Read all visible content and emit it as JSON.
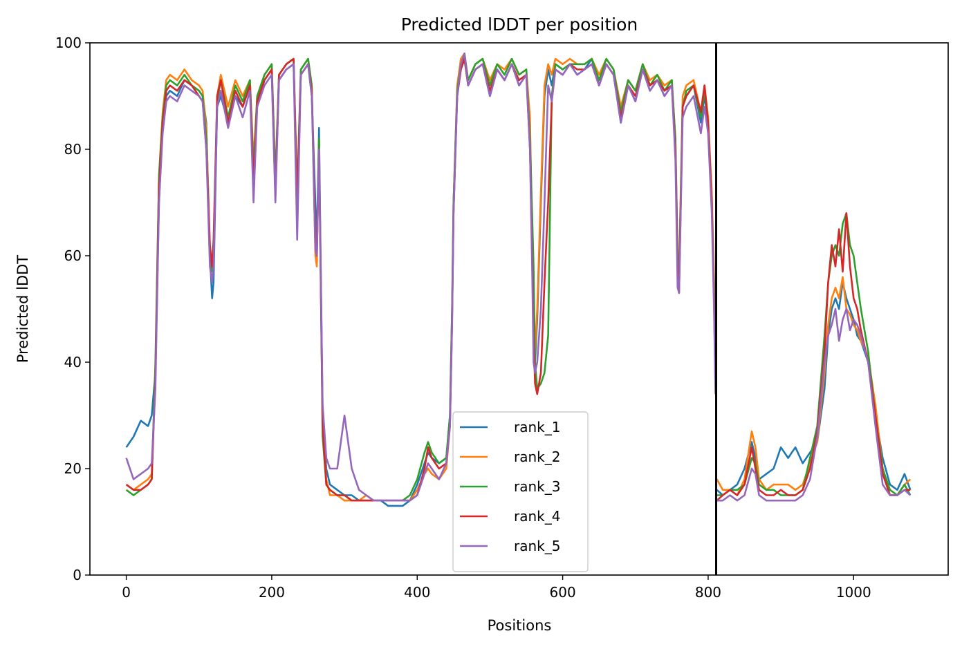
{
  "chart_data": {
    "type": "line",
    "title": "Predicted lDDT per position",
    "xlabel": "Positions",
    "ylabel": "Predicted lDDT",
    "xlim": [
      -50,
      1130
    ],
    "ylim": [
      0,
      100
    ],
    "xticks": [
      0,
      200,
      400,
      600,
      800,
      1000
    ],
    "yticks": [
      0,
      20,
      40,
      60,
      80,
      100
    ],
    "grid": false,
    "legend_position": "bottom-center",
    "vertical_line": {
      "x": 811,
      "color": "#000000"
    },
    "x": [
      0,
      10,
      20,
      30,
      35,
      40,
      45,
      50,
      55,
      60,
      70,
      80,
      90,
      100,
      105,
      110,
      115,
      118,
      120,
      125,
      130,
      140,
      150,
      160,
      170,
      175,
      180,
      190,
      200,
      205,
      210,
      220,
      230,
      235,
      240,
      250,
      255,
      260,
      262,
      265,
      270,
      275,
      280,
      290,
      300,
      310,
      320,
      330,
      340,
      350,
      360,
      370,
      380,
      390,
      400,
      410,
      415,
      420,
      430,
      440,
      445,
      448,
      450,
      455,
      460,
      465,
      470,
      480,
      490,
      500,
      510,
      520,
      530,
      540,
      550,
      555,
      558,
      560,
      562,
      565,
      570,
      575,
      580,
      585,
      590,
      600,
      610,
      620,
      630,
      640,
      650,
      660,
      670,
      680,
      690,
      700,
      710,
      720,
      730,
      740,
      750,
      755,
      758,
      760,
      765,
      770,
      780,
      790,
      795,
      800,
      805,
      808,
      810
    ],
    "x2": [
      812,
      820,
      830,
      840,
      850,
      860,
      865,
      870,
      880,
      890,
      900,
      910,
      920,
      930,
      940,
      950,
      960,
      965,
      970,
      975,
      980,
      985,
      990,
      995,
      1000,
      1005,
      1010,
      1020,
      1030,
      1040,
      1050,
      1060,
      1070,
      1078
    ],
    "series": [
      {
        "name": "rank_1",
        "color": "#1f77b4",
        "values": [
          24,
          26,
          29,
          28,
          30,
          38,
          70,
          85,
          90,
          91,
          90,
          93,
          92,
          91,
          90,
          85,
          60,
          52,
          55,
          88,
          90,
          85,
          90,
          88,
          92,
          75,
          88,
          93,
          95,
          72,
          93,
          95,
          96,
          70,
          94,
          96,
          90,
          70,
          62,
          84,
          30,
          20,
          17,
          16,
          15,
          15,
          14,
          14,
          14,
          14,
          13,
          13,
          13,
          14,
          17,
          21,
          23,
          22,
          21,
          22,
          30,
          50,
          70,
          90,
          95,
          97,
          92,
          95,
          96,
          90,
          95,
          93,
          96,
          92,
          94,
          85,
          62,
          48,
          40,
          48,
          70,
          90,
          95,
          92,
          96,
          95,
          96,
          94,
          95,
          97,
          92,
          96,
          94,
          85,
          92,
          89,
          95,
          91,
          93,
          90,
          92,
          80,
          58,
          55,
          88,
          90,
          92,
          85,
          90,
          85,
          70,
          55,
          45
        ],
        "values2": [
          16,
          15,
          16,
          17,
          20,
          25,
          22,
          18,
          19,
          20,
          24,
          22,
          24,
          21,
          23,
          25,
          35,
          45,
          50,
          52,
          50,
          55,
          52,
          50,
          48,
          45,
          44,
          40,
          30,
          22,
          17,
          16,
          19,
          16
        ]
      },
      {
        "name": "rank_2",
        "color": "#ff7f0e",
        "values": [
          17,
          16,
          17,
          18,
          19,
          38,
          75,
          87,
          93,
          94,
          93,
          95,
          93,
          92,
          91,
          84,
          62,
          58,
          60,
          90,
          94,
          88,
          93,
          90,
          93,
          78,
          90,
          94,
          96,
          75,
          94,
          96,
          97,
          72,
          95,
          97,
          92,
          60,
          58,
          82,
          28,
          18,
          15,
          15,
          14,
          14,
          14,
          15,
          14,
          14,
          14,
          14,
          14,
          14,
          16,
          19,
          20,
          19,
          18,
          20,
          28,
          48,
          70,
          92,
          97,
          98,
          93,
          96,
          97,
          93,
          96,
          95,
          97,
          94,
          95,
          86,
          64,
          50,
          42,
          50,
          72,
          92,
          96,
          94,
          97,
          96,
          97,
          96,
          96,
          97,
          94,
          97,
          95,
          88,
          93,
          91,
          96,
          93,
          94,
          92,
          93,
          82,
          60,
          57,
          90,
          92,
          93,
          87,
          92,
          86,
          72,
          56,
          42
        ],
        "values2": [
          18,
          16,
          16,
          15,
          18,
          27,
          24,
          18,
          16,
          17,
          17,
          17,
          16,
          17,
          21,
          25,
          38,
          47,
          52,
          54,
          52,
          56,
          50,
          49,
          47,
          46,
          44,
          41,
          32,
          20,
          15,
          15,
          17,
          18
        ]
      },
      {
        "name": "rank_3",
        "color": "#2ca02c",
        "values": [
          16,
          15,
          16,
          17,
          18,
          40,
          75,
          86,
          92,
          93,
          92,
          94,
          92,
          91,
          90,
          82,
          60,
          57,
          60,
          89,
          93,
          86,
          92,
          89,
          93,
          76,
          90,
          94,
          96,
          74,
          94,
          96,
          97,
          71,
          95,
          97,
          92,
          62,
          60,
          82,
          26,
          17,
          16,
          15,
          15,
          14,
          14,
          14,
          14,
          14,
          14,
          14,
          14,
          15,
          18,
          23,
          25,
          23,
          21,
          22,
          30,
          50,
          70,
          91,
          96,
          98,
          93,
          96,
          97,
          92,
          96,
          94,
          97,
          94,
          95,
          82,
          68,
          58,
          40,
          35,
          36,
          38,
          45,
          90,
          96,
          95,
          96,
          96,
          96,
          97,
          93,
          97,
          95,
          87,
          93,
          91,
          96,
          92,
          94,
          91,
          93,
          82,
          60,
          56,
          88,
          91,
          92,
          86,
          91,
          85,
          70,
          54,
          40
        ],
        "values2": [
          15,
          15,
          16,
          16,
          17,
          22,
          21,
          17,
          16,
          16,
          15,
          15,
          15,
          16,
          22,
          28,
          45,
          55,
          60,
          62,
          60,
          66,
          68,
          62,
          60,
          55,
          50,
          42,
          30,
          20,
          16,
          15,
          17,
          15
        ]
      },
      {
        "name": "rank_4",
        "color": "#d62728",
        "values": [
          17,
          16,
          16,
          17,
          18,
          37,
          73,
          85,
          91,
          92,
          91,
          93,
          92,
          90,
          89,
          80,
          62,
          58,
          63,
          90,
          93,
          85,
          91,
          88,
          92,
          74,
          89,
          93,
          95,
          71,
          94,
          96,
          97,
          70,
          94,
          96,
          91,
          64,
          60,
          80,
          28,
          17,
          16,
          15,
          15,
          14,
          14,
          14,
          14,
          14,
          14,
          14,
          14,
          14,
          15,
          20,
          24,
          22,
          20,
          21,
          28,
          48,
          68,
          90,
          95,
          97,
          92,
          95,
          96,
          91,
          95,
          93,
          96,
          93,
          94,
          80,
          60,
          45,
          36,
          34,
          38,
          55,
          70,
          89,
          95,
          94,
          96,
          95,
          95,
          96,
          92,
          96,
          94,
          86,
          92,
          90,
          95,
          92,
          93,
          91,
          92,
          80,
          58,
          53,
          88,
          90,
          92,
          87,
          92,
          85,
          70,
          52,
          35
        ],
        "values2": [
          14,
          15,
          16,
          15,
          17,
          24,
          20,
          16,
          15,
          15,
          16,
          15,
          15,
          16,
          20,
          27,
          42,
          55,
          62,
          58,
          65,
          57,
          68,
          58,
          52,
          50,
          46,
          40,
          30,
          19,
          15,
          15,
          16,
          16
        ]
      },
      {
        "name": "rank_5",
        "color": "#9467bd",
        "values": [
          22,
          18,
          19,
          20,
          21,
          35,
          70,
          83,
          89,
          90,
          89,
          92,
          91,
          90,
          89,
          80,
          58,
          55,
          58,
          88,
          91,
          84,
          90,
          86,
          91,
          70,
          88,
          92,
          94,
          70,
          93,
          95,
          96,
          63,
          94,
          96,
          90,
          61,
          60,
          80,
          32,
          22,
          20,
          20,
          30,
          20,
          16,
          15,
          14,
          14,
          14,
          14,
          14,
          14,
          15,
          19,
          21,
          20,
          18,
          21,
          28,
          47,
          68,
          90,
          96,
          98,
          92,
          95,
          96,
          90,
          95,
          93,
          96,
          92,
          94,
          80,
          58,
          40,
          38,
          40,
          50,
          70,
          92,
          89,
          95,
          94,
          96,
          94,
          95,
          96,
          92,
          96,
          94,
          85,
          92,
          89,
          95,
          91,
          93,
          90,
          92,
          78,
          54,
          53,
          86,
          88,
          90,
          83,
          88,
          83,
          68,
          50,
          34
        ],
        "values2": [
          14,
          14,
          15,
          14,
          15,
          20,
          19,
          15,
          14,
          14,
          14,
          14,
          14,
          15,
          18,
          26,
          40,
          45,
          47,
          50,
          44,
          48,
          50,
          46,
          48,
          47,
          45,
          40,
          28,
          17,
          15,
          15,
          16,
          15
        ]
      }
    ]
  }
}
